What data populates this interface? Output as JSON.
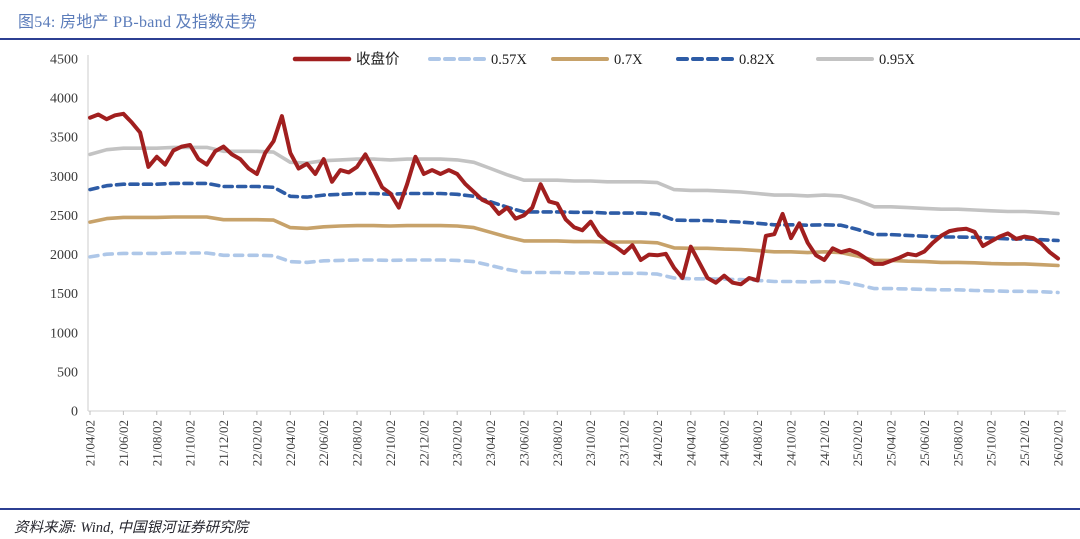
{
  "figure": {
    "title": "图54:  房地产 PB-band 及指数走势",
    "source": "资料来源:  Wind,  中国银河证券研究院"
  },
  "chart_data": {
    "type": "line",
    "title": "房地产 PB-band 及指数走势",
    "x_start_label": "21/04/02",
    "x_unit": "months",
    "x_tick_labels": [
      "21/04/02",
      "21/06/02",
      "21/08/02",
      "21/10/02",
      "21/12/02",
      "22/02/02",
      "22/04/02",
      "22/06/02",
      "22/08/02",
      "22/10/02",
      "22/12/02",
      "23/02/02",
      "23/04/02",
      "23/06/02",
      "23/08/02",
      "23/10/02",
      "23/12/02",
      "24/02/02",
      "24/04/02",
      "24/06/02",
      "24/08/02",
      "24/10/02",
      "24/12/02",
      "25/02/02",
      "25/04/02",
      "25/06/02",
      "25/08/02",
      "25/10/02",
      "25/12/02",
      "26/02/02"
    ],
    "y_ticks": [
      0,
      500,
      1000,
      1500,
      2000,
      2500,
      3000,
      3500,
      4000,
      4500
    ],
    "ylim": [
      0,
      4500
    ],
    "grid": false,
    "legend_position": "top",
    "axis_color": "#d9d9d9",
    "series": [
      {
        "key": "band-0-57x",
        "name": "0.57X",
        "color": "#aec7e8",
        "line_style": "dashed",
        "x_step": 1,
        "values": [
          1970,
          2005,
          2015,
          2015,
          2015,
          2020,
          2020,
          2020,
          1990,
          1990,
          1990,
          1985,
          1910,
          1900,
          1920,
          1925,
          1930,
          1930,
          1925,
          1930,
          1930,
          1930,
          1925,
          1910,
          1860,
          1810,
          1770,
          1770,
          1770,
          1765,
          1765,
          1760,
          1760,
          1760,
          1750,
          1700,
          1690,
          1690,
          1685,
          1680,
          1670,
          1655,
          1655,
          1650,
          1655,
          1650,
          1615,
          1565,
          1565,
          1560,
          1555,
          1550,
          1550,
          1540,
          1535,
          1530,
          1530,
          1525,
          1515
        ]
      },
      {
        "key": "band-0-7x",
        "name": "0.7X",
        "color": "#c7a26a",
        "line_style": "solid",
        "x_step": 1,
        "values": [
          2415,
          2460,
          2475,
          2475,
          2475,
          2480,
          2480,
          2480,
          2445,
          2445,
          2445,
          2440,
          2345,
          2335,
          2355,
          2365,
          2370,
          2370,
          2365,
          2370,
          2370,
          2370,
          2365,
          2345,
          2285,
          2225,
          2175,
          2175,
          2175,
          2165,
          2165,
          2160,
          2160,
          2160,
          2150,
          2085,
          2080,
          2080,
          2070,
          2065,
          2050,
          2035,
          2035,
          2025,
          2035,
          2025,
          1980,
          1925,
          1925,
          1915,
          1910,
          1900,
          1900,
          1895,
          1885,
          1880,
          1880,
          1870,
          1860
        ]
      },
      {
        "key": "band-0-82x",
        "name": "0.82X",
        "color": "#2e5ca6",
        "line_style": "dashed",
        "x_step": 1,
        "values": [
          2830,
          2880,
          2900,
          2900,
          2900,
          2910,
          2910,
          2910,
          2870,
          2870,
          2870,
          2860,
          2745,
          2735,
          2760,
          2770,
          2780,
          2780,
          2770,
          2780,
          2780,
          2780,
          2770,
          2745,
          2675,
          2605,
          2545,
          2545,
          2545,
          2540,
          2540,
          2530,
          2530,
          2530,
          2520,
          2440,
          2435,
          2435,
          2425,
          2415,
          2400,
          2380,
          2380,
          2375,
          2380,
          2375,
          2320,
          2255,
          2255,
          2245,
          2235,
          2225,
          2225,
          2220,
          2210,
          2200,
          2200,
          2190,
          2180
        ]
      },
      {
        "key": "band-0-95x",
        "name": "0.95X",
        "color": "#c3c3c3",
        "line_style": "solid",
        "x_step": 1,
        "values": [
          3280,
          3340,
          3360,
          3360,
          3360,
          3370,
          3370,
          3370,
          3320,
          3320,
          3320,
          3310,
          3180,
          3170,
          3200,
          3210,
          3220,
          3220,
          3210,
          3220,
          3220,
          3220,
          3210,
          3180,
          3100,
          3020,
          2950,
          2950,
          2950,
          2940,
          2940,
          2930,
          2930,
          2930,
          2920,
          2830,
          2820,
          2820,
          2810,
          2800,
          2780,
          2760,
          2760,
          2750,
          2760,
          2750,
          2690,
          2610,
          2610,
          2600,
          2590,
          2580,
          2580,
          2570,
          2560,
          2550,
          2550,
          2540,
          2525
        ]
      },
      {
        "key": "closing-price",
        "name": "收盘价",
        "color": "#a11f1f",
        "line_style": "solid",
        "x_step": 0.5,
        "values": [
          3750,
          3790,
          3730,
          3780,
          3800,
          3690,
          3560,
          3120,
          3250,
          3150,
          3330,
          3380,
          3400,
          3220,
          3150,
          3320,
          3380,
          3280,
          3220,
          3100,
          3030,
          3300,
          3450,
          3770,
          3300,
          3100,
          3160,
          3030,
          3220,
          2930,
          3080,
          3050,
          3120,
          3280,
          3080,
          2860,
          2780,
          2600,
          2900,
          3250,
          3030,
          3080,
          3030,
          3080,
          3030,
          2900,
          2800,
          2700,
          2650,
          2520,
          2600,
          2460,
          2500,
          2600,
          2900,
          2680,
          2650,
          2450,
          2350,
          2310,
          2420,
          2250,
          2160,
          2100,
          2020,
          2120,
          1930,
          2000,
          1990,
          2010,
          1830,
          1700,
          2100,
          1900,
          1700,
          1640,
          1730,
          1640,
          1620,
          1700,
          1670,
          2240,
          2260,
          2520,
          2210,
          2400,
          2150,
          1990,
          1930,
          2080,
          2030,
          2060,
          2020,
          1950,
          1880,
          1880,
          1920,
          1960,
          2010,
          1990,
          2040,
          2150,
          2240,
          2300,
          2320,
          2330,
          2290,
          2110,
          2170,
          2230,
          2270,
          2200,
          2230,
          2210,
          2140,
          2030,
          1950
        ]
      }
    ],
    "legend_order": [
      "closing-price",
      "band-0-57x",
      "band-0-7x",
      "band-0-82x",
      "band-0-95x"
    ]
  }
}
